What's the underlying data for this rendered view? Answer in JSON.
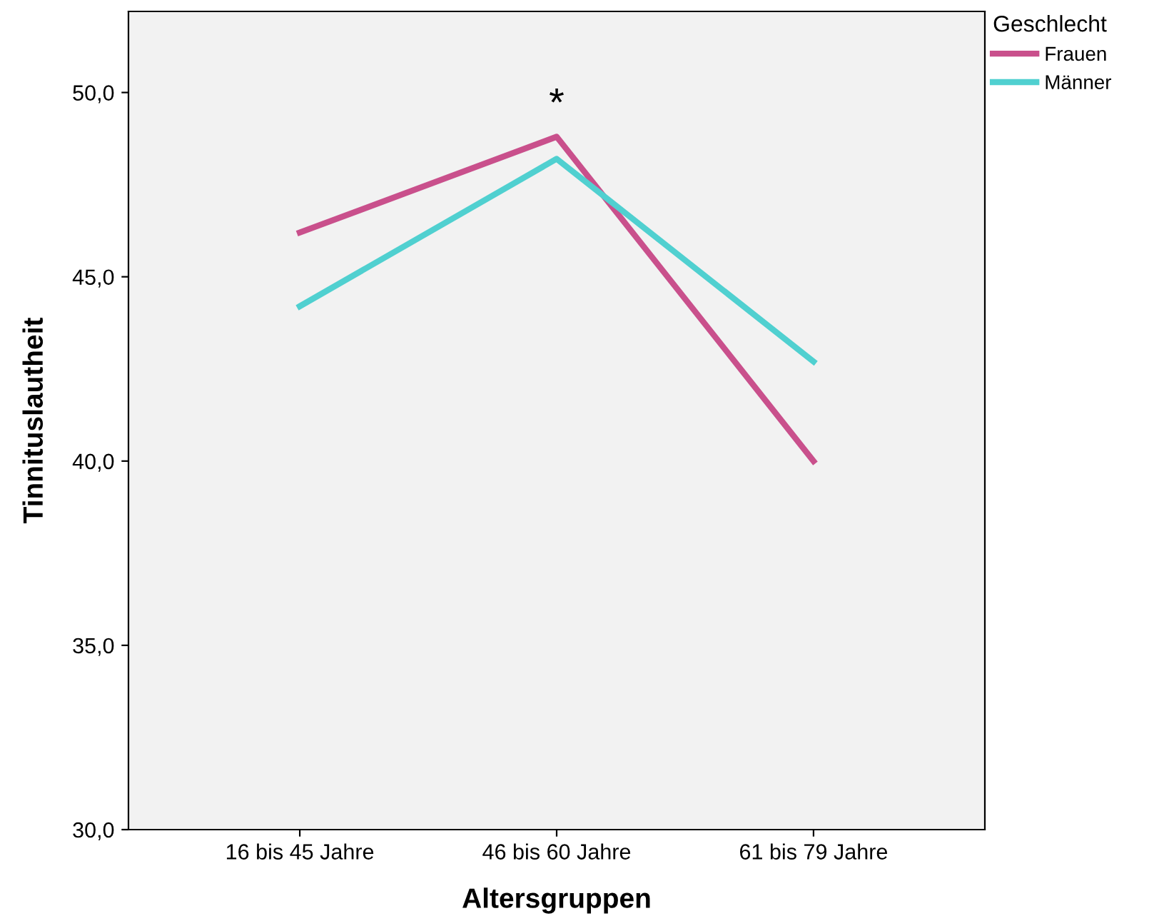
{
  "chart_data": {
    "type": "line",
    "xlabel": "Altersgruppen",
    "ylabel": "Tinnituslautheit",
    "legend_title": "Geschlecht",
    "categories": [
      "16 bis 45 Jahre",
      "46 bis 60 Jahre",
      "61 bis 79 Jahre"
    ],
    "series": [
      {
        "name": "Frauen",
        "color": "#c9508c",
        "values": [
          46.2,
          48.8,
          40.0
        ]
      },
      {
        "name": "Männer",
        "color": "#50d0d0",
        "values": [
          44.2,
          48.2,
          42.7
        ]
      }
    ],
    "ylim": [
      30,
      52.2
    ],
    "yticks": [
      {
        "value": 30,
        "label": "30,0"
      },
      {
        "value": 35,
        "label": "35,0"
      },
      {
        "value": 40,
        "label": "40,0"
      },
      {
        "value": 45,
        "label": "45,0"
      },
      {
        "value": 50,
        "label": "50,0"
      }
    ],
    "annotations": [
      "*"
    ],
    "grid": false,
    "legend": "top right",
    "marker": "none",
    "line_style": "solid"
  }
}
